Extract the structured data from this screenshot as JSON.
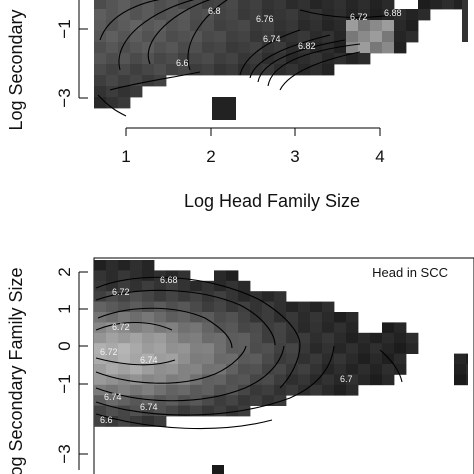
{
  "chart_data": [
    {
      "type": "heatmap",
      "panel": "top",
      "xlabel": "Log Head Family Size",
      "ylabel": "Log Secondary",
      "x_ticks": [
        "1",
        "2",
        "3",
        "4"
      ],
      "y_ticks": [
        "−1",
        "−3"
      ],
      "contour_labels": [
        "6.6",
        "6.76",
        "6.72",
        "6.82",
        "6.8",
        "6.74",
        "6.88"
      ],
      "colors": {
        "cell_dark": "#1a1a1a",
        "cell_mid": "#5a5a5a",
        "cell_light": "#9a9a9a",
        "contour": "#000000"
      }
    },
    {
      "type": "heatmap",
      "panel": "bottom",
      "ylabel": "og Secondary Family Size",
      "legend": "Head in SCC",
      "y_ticks": [
        "2",
        "1",
        "0",
        "−1",
        "−3"
      ],
      "contour_labels": [
        "6.72",
        "6.72",
        "6.72",
        "6.74",
        "6.74",
        "6.74",
        "6.6",
        "6.68",
        "6.7"
      ],
      "colors": {
        "cell_dark": "#1c1c1c",
        "cell_mid": "#5e5e5e",
        "cell_light": "#a6a6a6",
        "contour": "#000000"
      }
    }
  ]
}
